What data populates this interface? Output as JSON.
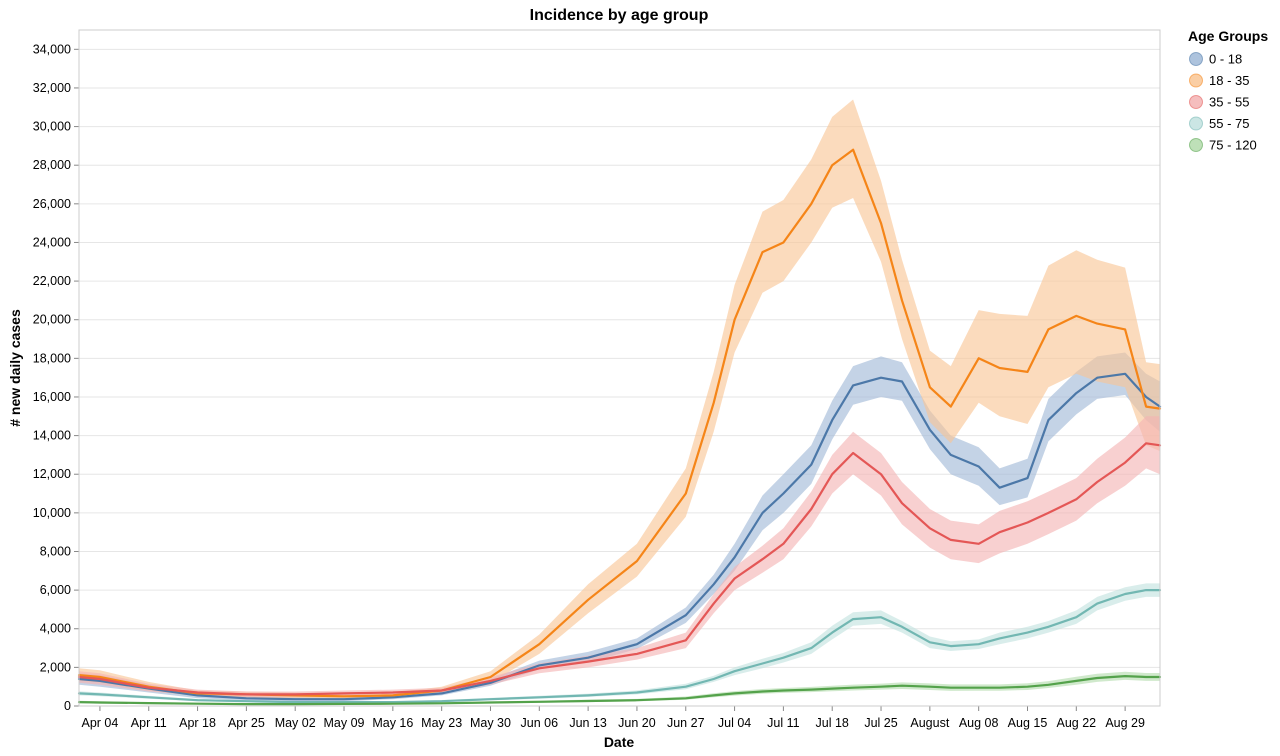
{
  "chart_data": {
    "type": "line",
    "title": "Incidence by age group",
    "xlabel": "Date",
    "ylabel": "# new daily cases",
    "ylim": [
      0,
      35000
    ],
    "y_ticks": [
      0,
      2000,
      4000,
      6000,
      8000,
      10000,
      12000,
      14000,
      16000,
      18000,
      20000,
      22000,
      24000,
      26000,
      28000,
      30000,
      32000,
      34000
    ],
    "y_tick_labels": [
      "0",
      "2,000",
      "4,000",
      "6,000",
      "8,000",
      "10,000",
      "12,000",
      "14,000",
      "16,000",
      "18,000",
      "20,000",
      "22,000",
      "24,000",
      "26,000",
      "28,000",
      "30,000",
      "32,000",
      "34,000"
    ],
    "x_range": [
      "Apr 01",
      "Sep 03"
    ],
    "x_ticks": [
      "Apr 04",
      "Apr 11",
      "Apr 18",
      "Apr 25",
      "May 02",
      "May 09",
      "May 16",
      "May 23",
      "May 30",
      "Jun 06",
      "Jun 13",
      "Jun 20",
      "Jun 27",
      "Jul 04",
      "Jul 11",
      "Jul 18",
      "Jul 25",
      "Aug 01",
      "Aug 08",
      "Aug 15",
      "Aug 22",
      "Aug 29"
    ],
    "x_tick_labels": [
      "Apr 04",
      "Apr 11",
      "Apr 18",
      "Apr 25",
      "May 02",
      "May 09",
      "May 16",
      "May 23",
      "May 30",
      "Jun 06",
      "Jun 13",
      "Jun 20",
      "Jun 27",
      "Jul 04",
      "Jul 11",
      "Jul 18",
      "Jul 25",
      "August",
      "Aug 08",
      "Aug 15",
      "Aug 22",
      "Aug 29"
    ],
    "grid": true,
    "legend": {
      "title": "Age Groups",
      "position": "top-right"
    },
    "x": [
      "Apr 01",
      "Apr 04",
      "Apr 11",
      "Apr 18",
      "Apr 25",
      "May 02",
      "May 09",
      "May 16",
      "May 23",
      "May 30",
      "Jun 06",
      "Jun 13",
      "Jun 20",
      "Jun 27",
      "Jul 01",
      "Jul 04",
      "Jul 08",
      "Jul 11",
      "Jul 15",
      "Jul 18",
      "Jul 21",
      "Jul 25",
      "Jul 28",
      "Aug 01",
      "Aug 04",
      "Aug 08",
      "Aug 11",
      "Aug 15",
      "Aug 18",
      "Aug 22",
      "Aug 25",
      "Aug 29",
      "Sep 01",
      "Sep 03"
    ],
    "series": [
      {
        "name": "0 - 18",
        "color": "#4c78a8",
        "band_color": "#9fb8d7",
        "values": [
          1400,
          1300,
          900,
          550,
          400,
          350,
          350,
          450,
          650,
          1200,
          2100,
          2500,
          3200,
          4700,
          6300,
          7700,
          10000,
          11000,
          12500,
          14800,
          16600,
          17000,
          16800,
          14300,
          13000,
          12400,
          11300,
          11800,
          14800,
          16200,
          17000,
          17200,
          16000,
          15500
        ],
        "lower": [
          1100,
          1000,
          700,
          400,
          300,
          250,
          250,
          350,
          550,
          1050,
          1900,
          2250,
          2950,
          4300,
          5800,
          7000,
          9100,
          10000,
          11500,
          13800,
          15600,
          16000,
          15800,
          13300,
          12000,
          11400,
          10400,
          10800,
          13700,
          15100,
          15900,
          16100,
          14800,
          14200
        ],
        "upper": [
          1700,
          1600,
          1100,
          700,
          500,
          450,
          450,
          550,
          800,
          1400,
          2350,
          2800,
          3500,
          5100,
          6800,
          8400,
          10900,
          12000,
          13500,
          15800,
          17600,
          18100,
          17800,
          15300,
          14000,
          13400,
          12300,
          12800,
          15900,
          17300,
          18100,
          18300,
          17200,
          16800
        ]
      },
      {
        "name": "18 - 35",
        "color": "#f58518",
        "band_color": "#f9c594",
        "values": [
          1600,
          1500,
          1000,
          650,
          600,
          550,
          500,
          550,
          800,
          1500,
          3200,
          5500,
          7500,
          11000,
          15700,
          20000,
          23500,
          24000,
          26000,
          28000,
          28800,
          25000,
          21000,
          16500,
          15500,
          18000,
          17500,
          17300,
          19500,
          20200,
          19800,
          19500,
          15500,
          15400
        ],
        "lower": [
          1300,
          1200,
          800,
          500,
          450,
          400,
          380,
          420,
          650,
          1200,
          2700,
          4800,
          6700,
          9800,
          14200,
          18300,
          21400,
          22000,
          24000,
          25800,
          26300,
          23000,
          19000,
          14700,
          13600,
          15700,
          15000,
          14600,
          16500,
          17200,
          16800,
          16500,
          13500,
          13200
        ],
        "upper": [
          1950,
          1850,
          1250,
          800,
          750,
          700,
          650,
          700,
          1000,
          1800,
          3700,
          6300,
          8400,
          12300,
          17300,
          21800,
          25600,
          26200,
          28300,
          30500,
          31400,
          27200,
          23100,
          18400,
          17600,
          20500,
          20300,
          20200,
          22800,
          23600,
          23100,
          22700,
          17800,
          17700
        ]
      },
      {
        "name": "35 - 55",
        "color": "#e45756",
        "band_color": "#f3b3b3",
        "values": [
          1500,
          1400,
          950,
          700,
          600,
          600,
          650,
          700,
          800,
          1300,
          1950,
          2300,
          2700,
          3400,
          5300,
          6600,
          7600,
          8400,
          10200,
          12000,
          13100,
          12000,
          10500,
          9200,
          8600,
          8400,
          9000,
          9500,
          10000,
          10700,
          11600,
          12600,
          13600,
          13500
        ],
        "lower": [
          1200,
          1100,
          750,
          550,
          450,
          450,
          500,
          550,
          650,
          1100,
          1700,
          2000,
          2400,
          3000,
          4800,
          6000,
          6900,
          7600,
          9300,
          11000,
          12000,
          10900,
          9400,
          8200,
          7600,
          7400,
          7900,
          8400,
          8900,
          9600,
          10500,
          11400,
          12300,
          12000
        ],
        "upper": [
          1800,
          1700,
          1150,
          850,
          750,
          750,
          800,
          850,
          950,
          1500,
          2200,
          2600,
          3000,
          3800,
          5800,
          7200,
          8300,
          9200,
          11100,
          13000,
          14200,
          13100,
          11600,
          10200,
          9600,
          9400,
          10100,
          10600,
          11100,
          11800,
          12800,
          13900,
          15000,
          15000
        ]
      },
      {
        "name": "55 - 75",
        "color": "#72b7b2",
        "band_color": "#c2e2df",
        "values": [
          650,
          600,
          450,
          300,
          250,
          200,
          200,
          200,
          250,
          350,
          450,
          550,
          700,
          1000,
          1400,
          1800,
          2200,
          2500,
          3000,
          3800,
          4500,
          4600,
          4100,
          3300,
          3100,
          3200,
          3500,
          3800,
          4100,
          4600,
          5300,
          5800,
          6000,
          6000
        ],
        "lower": [
          550,
          500,
          380,
          240,
          200,
          160,
          160,
          160,
          200,
          290,
          380,
          470,
          600,
          870,
          1250,
          1600,
          1950,
          2250,
          2700,
          3450,
          4150,
          4250,
          3800,
          3000,
          2850,
          2950,
          3200,
          3500,
          3800,
          4250,
          4950,
          5450,
          5650,
          5650
        ],
        "upper": [
          760,
          700,
          530,
          360,
          300,
          250,
          250,
          250,
          310,
          420,
          530,
          640,
          810,
          1150,
          1570,
          2000,
          2450,
          2750,
          3300,
          4150,
          4850,
          4950,
          4400,
          3600,
          3350,
          3450,
          3800,
          4100,
          4400,
          4950,
          5650,
          6150,
          6350,
          6350
        ]
      },
      {
        "name": "75 - 120",
        "color": "#54a24b",
        "band_color": "#b3dbac",
        "values": [
          200,
          180,
          150,
          120,
          100,
          100,
          110,
          120,
          140,
          180,
          220,
          260,
          300,
          400,
          550,
          650,
          750,
          800,
          850,
          900,
          950,
          1000,
          1050,
          1000,
          950,
          950,
          950,
          1000,
          1100,
          1300,
          1450,
          1550,
          1500,
          1500
        ],
        "lower": [
          140,
          120,
          100,
          80,
          60,
          60,
          70,
          80,
          100,
          130,
          170,
          200,
          240,
          320,
          450,
          540,
          630,
          680,
          720,
          760,
          800,
          850,
          880,
          830,
          780,
          790,
          790,
          830,
          930,
          1100,
          1250,
          1350,
          1300,
          1300
        ],
        "upper": [
          270,
          250,
          200,
          170,
          140,
          140,
          150,
          160,
          190,
          240,
          280,
          330,
          370,
          490,
          660,
          770,
          880,
          930,
          990,
          1050,
          1110,
          1160,
          1220,
          1170,
          1120,
          1120,
          1120,
          1180,
          1290,
          1510,
          1670,
          1770,
          1710,
          1710
        ]
      }
    ]
  }
}
